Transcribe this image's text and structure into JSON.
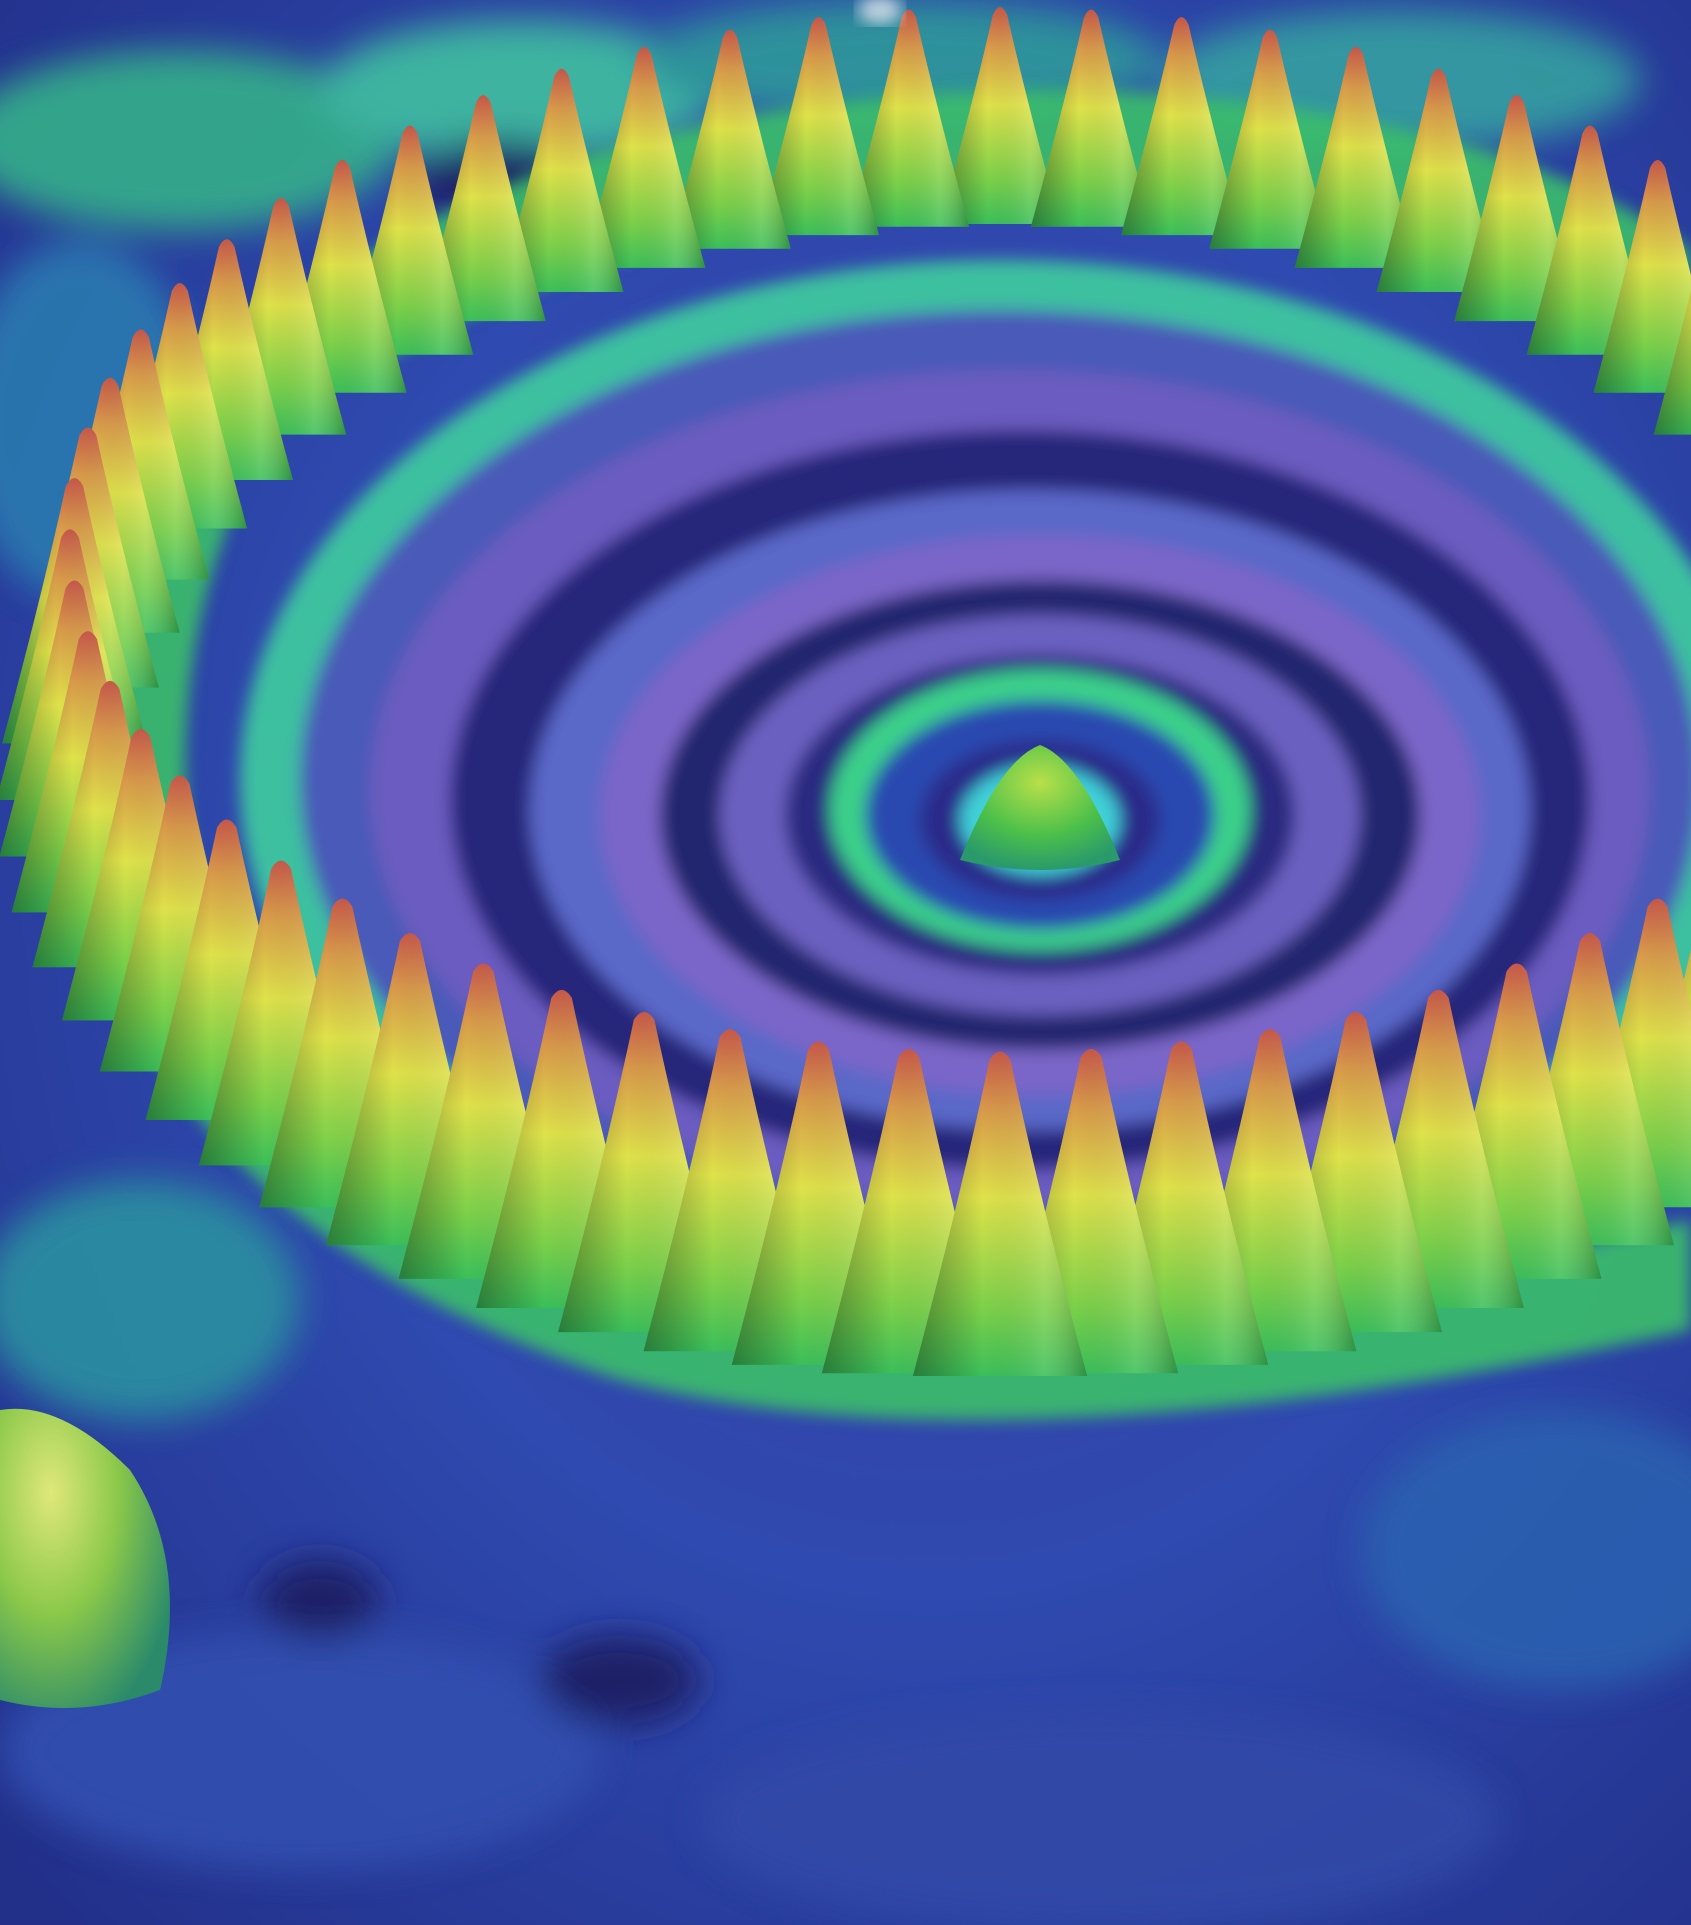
{
  "image": {
    "subject": "electron-density-corral",
    "palette": {
      "background_deep": "#2b2a86",
      "background_mid": "#3a4fb0",
      "ripple_violet": "#6a5cc0",
      "ripple_dark": "#1e1f6e",
      "ripple_cyan": "#3fd0d8",
      "ripple_green": "#3bbf5a",
      "spike_base": "#4cc04a",
      "spike_mid": "#d8e04a",
      "spike_tip": "#c8584a"
    }
  }
}
